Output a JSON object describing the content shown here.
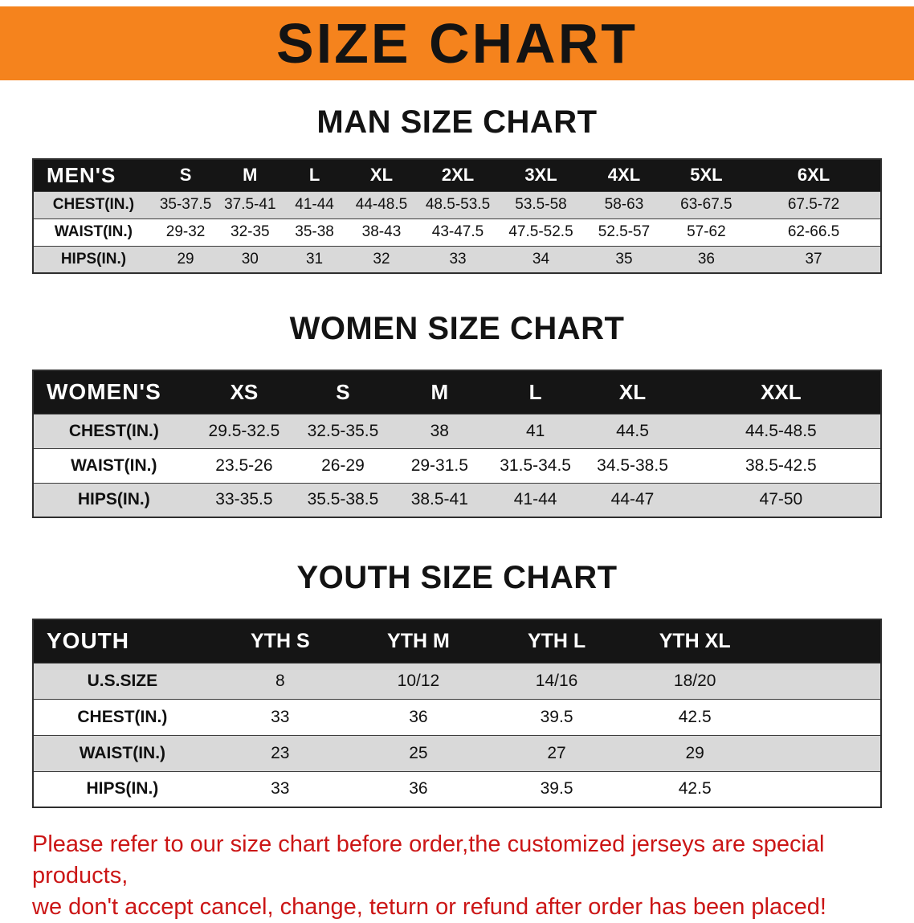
{
  "banner": {
    "title": "SIZE CHART"
  },
  "colors": {
    "accent_orange": "#F5831D",
    "header_black": "#151515",
    "row_gray": "#D9D9D9",
    "disclaimer_red": "#CB1616"
  },
  "sections": [
    {
      "id": "men",
      "heading": "MAN SIZE CHART",
      "table": {
        "columns": [
          "MEN'S",
          "S",
          "M",
          "L",
          "XL",
          "2XL",
          "3XL",
          "4XL",
          "5XL",
          "6XL"
        ],
        "rows": [
          [
            "CHEST(IN.)",
            "35-37.5",
            "37.5-41",
            "41-44",
            "44-48.5",
            "48.5-53.5",
            "53.5-58",
            "58-63",
            "63-67.5",
            "67.5-72"
          ],
          [
            "WAIST(IN.)",
            "29-32",
            "32-35",
            "35-38",
            "38-43",
            "43-47.5",
            "47.5-52.5",
            "52.5-57",
            "57-62",
            "62-66.5"
          ],
          [
            "HIPS(IN.)",
            "29",
            "30",
            "31",
            "32",
            "33",
            "34",
            "35",
            "36",
            "37"
          ]
        ]
      }
    },
    {
      "id": "women",
      "heading": "WOMEN SIZE CHART",
      "table": {
        "columns": [
          "WOMEN'S",
          "XS",
          "S",
          "M",
          "L",
          "XL",
          "XXL"
        ],
        "rows": [
          [
            "CHEST(IN.)",
            "29.5-32.5",
            "32.5-35.5",
            "38",
            "41",
            "44.5",
            "44.5-48.5"
          ],
          [
            "WAIST(IN.)",
            "23.5-26",
            "26-29",
            "29-31.5",
            "31.5-34.5",
            "34.5-38.5",
            "38.5-42.5"
          ],
          [
            "HIPS(IN.)",
            "33-35.5",
            "35.5-38.5",
            "38.5-41",
            "41-44",
            "44-47",
            "47-50"
          ]
        ]
      }
    },
    {
      "id": "youth",
      "heading": "YOUTH SIZE CHART",
      "table": {
        "columns": [
          "YOUTH",
          "YTH S",
          "YTH M",
          "YTH L",
          "YTH XL",
          ""
        ],
        "rows": [
          [
            "U.S.SIZE",
            "8",
            "10/12",
            "14/16",
            "18/20"
          ],
          [
            "CHEST(IN.)",
            "33",
            "36",
            "39.5",
            "42.5"
          ],
          [
            "WAIST(IN.)",
            "23",
            "25",
            "27",
            "29"
          ],
          [
            "HIPS(IN.)",
            "33",
            "36",
            "39.5",
            "42.5"
          ]
        ]
      }
    }
  ],
  "disclaimer": {
    "line1": "Please refer to our size chart before order,the customized jerseys are special products,",
    "line2": "we don't accept cancel, change, teturn or refund after order has been placed!"
  }
}
